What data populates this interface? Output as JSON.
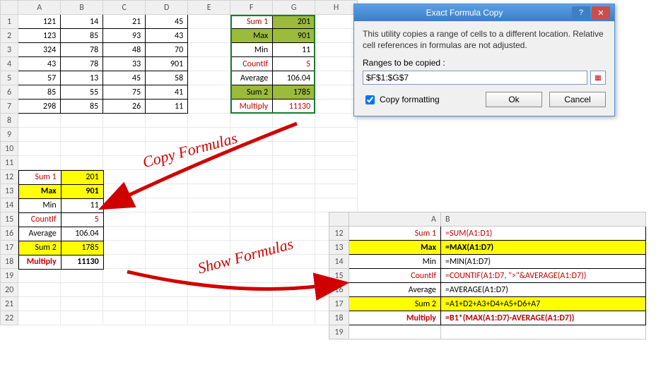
{
  "sheet": {
    "cols": [
      "A",
      "B",
      "C",
      "D",
      "E",
      "F",
      "G",
      "H"
    ],
    "rowCount": 22,
    "data": [
      [
        121,
        14,
        21,
        45
      ],
      [
        123,
        85,
        93,
        43
      ],
      [
        324,
        78,
        48,
        70
      ],
      [
        43,
        78,
        33,
        901
      ],
      [
        57,
        13,
        45,
        58
      ],
      [
        85,
        55,
        75,
        41
      ],
      [
        298,
        85,
        26,
        11
      ]
    ],
    "fg": [
      {
        "label": "Sum 1",
        "value": "201",
        "label_style": "red",
        "value_style": "olive"
      },
      {
        "label": "Max",
        "value": "901",
        "label_style": "olive bold",
        "value_style": "olive bold"
      },
      {
        "label": "Min",
        "value": "11",
        "label_style": "",
        "value_style": ""
      },
      {
        "label": "CountIf",
        "value": "5",
        "label_style": "red",
        "value_style": "red"
      },
      {
        "label": "Average",
        "value": "106.04",
        "label_style": "",
        "value_style": ""
      },
      {
        "label": "Sum 2",
        "value": "1785",
        "label_style": "olive",
        "value_style": "olive"
      },
      {
        "label": "Multiply",
        "value": "11130",
        "label_style": "red bold",
        "value_style": "red bold"
      }
    ]
  },
  "copy": [
    {
      "label": "Sum 1",
      "value": "201",
      "label_style": "red",
      "value_style": "yellow"
    },
    {
      "label": "Max",
      "value": "901",
      "label_style": "yellow bold",
      "value_style": "yellow bold"
    },
    {
      "label": "Min",
      "value": "11",
      "label_style": "",
      "value_style": ""
    },
    {
      "label": "CountIf",
      "value": "5",
      "label_style": "red",
      "value_style": "red"
    },
    {
      "label": "Average",
      "value": "106.04",
      "label_style": "",
      "value_style": ""
    },
    {
      "label": "Sum 2",
      "value": "1785",
      "label_style": "yellow",
      "value_style": "yellow"
    },
    {
      "label": "Multiply",
      "value": "11130",
      "label_style": "red bold",
      "value_style": "bold"
    }
  ],
  "formulas": {
    "startRow": 12,
    "rows": [
      {
        "a": "Sum 1",
        "b": "=SUM(A1:D1)",
        "style": "red"
      },
      {
        "a": "Max",
        "b": "=MAX(A1:D7)",
        "style": "yellow bold"
      },
      {
        "a": "Min",
        "b": "=MIN(A1:D7)",
        "style": ""
      },
      {
        "a": "CountIf",
        "b": "=COUNTIF(A1:D7, \">\"&AVERAGE(A1:D7))",
        "style": "red"
      },
      {
        "a": "Average",
        "b": "=AVERAGE(A1:D7)",
        "style": ""
      },
      {
        "a": "Sum 2",
        "b": "=A1+D2+A3+D4+A5+D6+A7",
        "style": "yellow"
      },
      {
        "a": "Multiply",
        "b": "=B1*(MAX(A1:D7)-AVERAGE(A1:D7))",
        "style": "red bold"
      }
    ],
    "lastEmptyRow": "19"
  },
  "dialog": {
    "title": "Exact Formula Copy",
    "desc": "This utility copies a range of cells to a different location. Relative cell references in formulas are not adjusted.",
    "range_label": "Ranges to be copied :",
    "range_value": "$F$1:$G$7",
    "copy_formatting": "Copy formatting",
    "ok": "Ok",
    "cancel": "Cancel"
  },
  "annotations": {
    "copyFormulas": "Copy Formulas",
    "showFormulas": "Show Formulas"
  }
}
